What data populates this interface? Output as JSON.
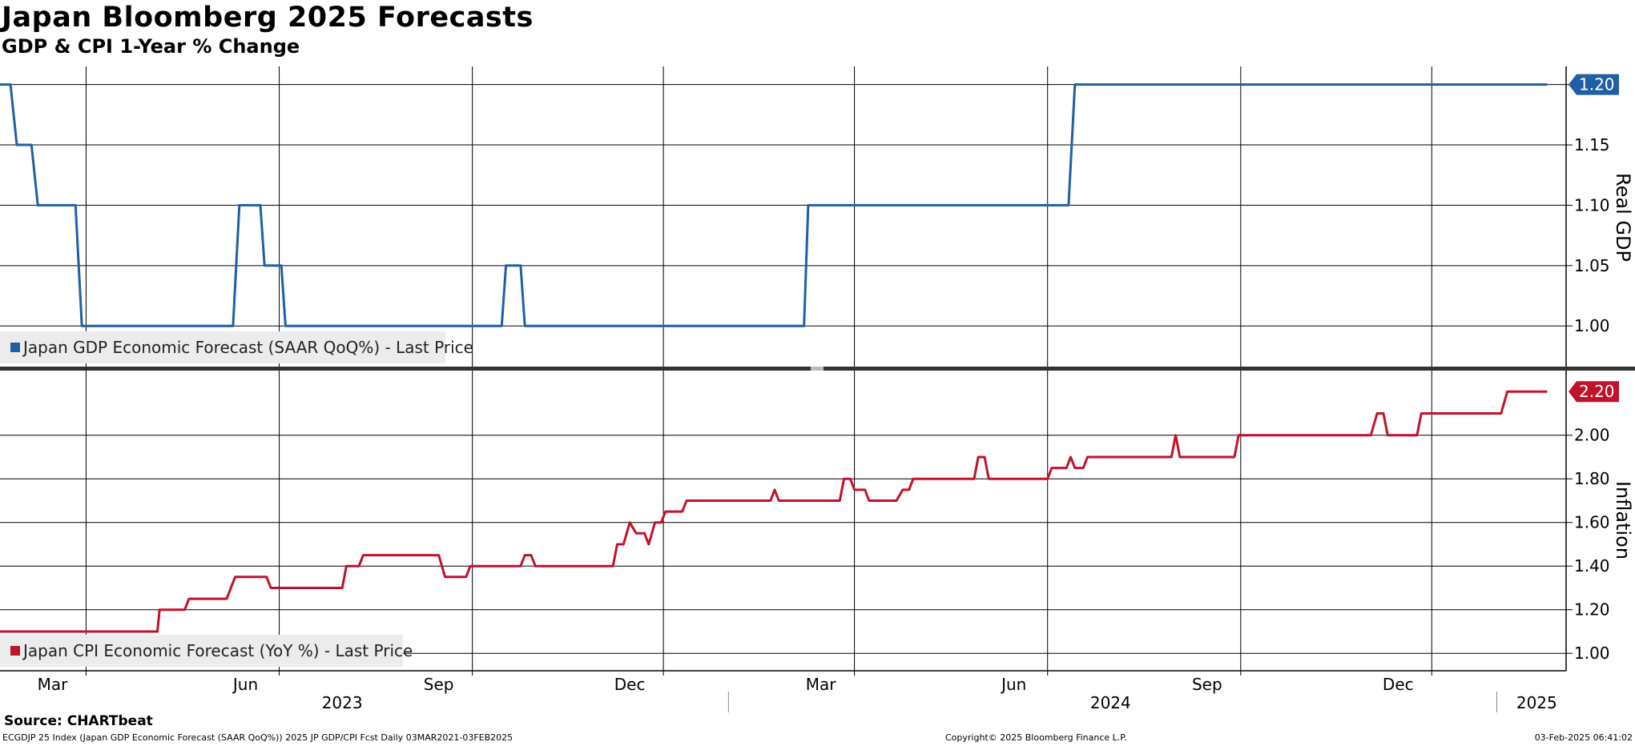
{
  "header": {
    "title": "Japan Bloomberg 2025 Forecasts",
    "subtitle": "GDP & CPI 1-Year % Change"
  },
  "footer": {
    "source": "Source: CHARTbeat",
    "description": "ECGDJP 25 Index (Japan GDP Economic Forecast (SAAR QoQ%)) 2025 JP GDP/CPI Fcst  Daily 03MAR2021-03FEB2025",
    "copyright": "Copyright© 2025 Bloomberg Finance L.P.",
    "timestamp": "03-Feb-2025 06:41:02"
  },
  "colors": {
    "gdp": "#1f5fa3",
    "cpi": "#c0122b"
  },
  "chart_data": {
    "type": "line",
    "x_axis": {
      "start": "2023-01-19",
      "end": "2025-02-03",
      "month_ticks": [
        {
          "date": "2023-03-01",
          "label": "Mar"
        },
        {
          "date": "2023-06-01",
          "label": "Jun"
        },
        {
          "date": "2023-09-01",
          "label": "Sep"
        },
        {
          "date": "2023-12-01",
          "label": "Dec"
        },
        {
          "date": "2024-03-01",
          "label": "Mar"
        },
        {
          "date": "2024-06-01",
          "label": "Jun"
        },
        {
          "date": "2024-09-01",
          "label": "Sep"
        },
        {
          "date": "2024-12-01",
          "label": "Dec"
        }
      ],
      "year_labels": [
        {
          "date": "2023-07-01",
          "label": "2023"
        },
        {
          "date": "2024-07-01",
          "label": "2024"
        },
        {
          "date": "2025-01-20",
          "label": "2025"
        }
      ],
      "year_separators": [
        "2024-01-01",
        "2025-01-01"
      ]
    },
    "panels": [
      {
        "axis_label": "Real GDP",
        "ylim": [
          0.965,
          1.215
        ],
        "y_ticks": [
          "1.00",
          "1.05",
          "1.10",
          "1.15",
          "1.20"
        ],
        "last_value_label": "1.20",
        "grid": true,
        "series": [
          {
            "name": "Japan GDP Economic Forecast (SAAR QoQ%) - Last Price",
            "color_key": "gdp",
            "points": [
              [
                "2023-01-19",
                1.2
              ],
              [
                "2023-01-24",
                1.2
              ],
              [
                "2023-01-27",
                1.15
              ],
              [
                "2023-02-03",
                1.15
              ],
              [
                "2023-02-06",
                1.1
              ],
              [
                "2023-02-24",
                1.1
              ],
              [
                "2023-02-27",
                1.0
              ],
              [
                "2023-05-10",
                1.0
              ],
              [
                "2023-05-13",
                1.1
              ],
              [
                "2023-05-23",
                1.1
              ],
              [
                "2023-05-25",
                1.05
              ],
              [
                "2023-06-02",
                1.05
              ],
              [
                "2023-06-04",
                1.0
              ],
              [
                "2023-09-15",
                1.0
              ],
              [
                "2023-09-17",
                1.05
              ],
              [
                "2023-09-24",
                1.05
              ],
              [
                "2023-09-26",
                1.0
              ],
              [
                "2024-02-06",
                1.0
              ],
              [
                "2024-02-08",
                1.1
              ],
              [
                "2024-06-11",
                1.1
              ],
              [
                "2024-06-14",
                1.2
              ],
              [
                "2025-01-25",
                1.2
              ]
            ]
          }
        ]
      },
      {
        "axis_label": "Inflation",
        "ylim": [
          0.92,
          2.3
        ],
        "y_ticks": [
          "1.00",
          "1.20",
          "1.40",
          "1.60",
          "1.80",
          "2.00"
        ],
        "last_value_label": "2.20",
        "grid": true,
        "series": [
          {
            "name": "Japan CPI Economic Forecast (YoY %) - Last Price",
            "color_key": "cpi",
            "points": [
              [
                "2023-01-19",
                1.1
              ],
              [
                "2023-04-04",
                1.1
              ],
              [
                "2023-04-05",
                1.2
              ],
              [
                "2023-04-17",
                1.2
              ],
              [
                "2023-04-19",
                1.25
              ],
              [
                "2023-05-07",
                1.25
              ],
              [
                "2023-05-11",
                1.35
              ],
              [
                "2023-05-26",
                1.35
              ],
              [
                "2023-05-28",
                1.3
              ],
              [
                "2023-07-01",
                1.3
              ],
              [
                "2023-07-03",
                1.4
              ],
              [
                "2023-07-09",
                1.4
              ],
              [
                "2023-07-11",
                1.45
              ],
              [
                "2023-08-16",
                1.45
              ],
              [
                "2023-08-19",
                1.35
              ],
              [
                "2023-08-29",
                1.35
              ],
              [
                "2023-08-31",
                1.4
              ],
              [
                "2023-09-24",
                1.4
              ],
              [
                "2023-09-26",
                1.45
              ],
              [
                "2023-09-29",
                1.45
              ],
              [
                "2023-10-01",
                1.4
              ],
              [
                "2023-11-07",
                1.4
              ],
              [
                "2023-11-09",
                1.5
              ],
              [
                "2023-11-12",
                1.5
              ],
              [
                "2023-11-15",
                1.6
              ],
              [
                "2023-11-18",
                1.55
              ],
              [
                "2023-11-22",
                1.55
              ],
              [
                "2023-11-24",
                1.5
              ],
              [
                "2023-11-27",
                1.6
              ],
              [
                "2023-11-30",
                1.6
              ],
              [
                "2023-12-02",
                1.65
              ],
              [
                "2023-12-10",
                1.65
              ],
              [
                "2023-12-12",
                1.7
              ],
              [
                "2024-01-21",
                1.7
              ],
              [
                "2024-01-23",
                1.75
              ],
              [
                "2024-01-25",
                1.7
              ],
              [
                "2024-02-23",
                1.7
              ],
              [
                "2024-02-25",
                1.8
              ],
              [
                "2024-02-28",
                1.8
              ],
              [
                "2024-03-01",
                1.75
              ],
              [
                "2024-03-06",
                1.75
              ],
              [
                "2024-03-08",
                1.7
              ],
              [
                "2024-03-21",
                1.7
              ],
              [
                "2024-03-24",
                1.75
              ],
              [
                "2024-03-27",
                1.75
              ],
              [
                "2024-03-29",
                1.8
              ],
              [
                "2024-04-27",
                1.8
              ],
              [
                "2024-04-29",
                1.9
              ],
              [
                "2024-05-02",
                1.9
              ],
              [
                "2024-05-04",
                1.8
              ],
              [
                "2024-06-01",
                1.8
              ],
              [
                "2024-06-03",
                1.85
              ],
              [
                "2024-06-10",
                1.85
              ],
              [
                "2024-06-12",
                1.9
              ],
              [
                "2024-06-14",
                1.85
              ],
              [
                "2024-06-18",
                1.85
              ],
              [
                "2024-06-20",
                1.9
              ],
              [
                "2024-07-30",
                1.9
              ],
              [
                "2024-08-01",
                2.0
              ],
              [
                "2024-08-03",
                1.9
              ],
              [
                "2024-08-29",
                1.9
              ],
              [
                "2024-08-31",
                2.0
              ],
              [
                "2024-11-02",
                2.0
              ],
              [
                "2024-11-05",
                2.1
              ],
              [
                "2024-11-08",
                2.1
              ],
              [
                "2024-11-10",
                2.0
              ],
              [
                "2024-11-24",
                2.0
              ],
              [
                "2024-11-26",
                2.1
              ],
              [
                "2025-01-03",
                2.1
              ],
              [
                "2025-01-06",
                2.2
              ],
              [
                "2025-01-25",
                2.2
              ]
            ]
          }
        ]
      }
    ]
  }
}
